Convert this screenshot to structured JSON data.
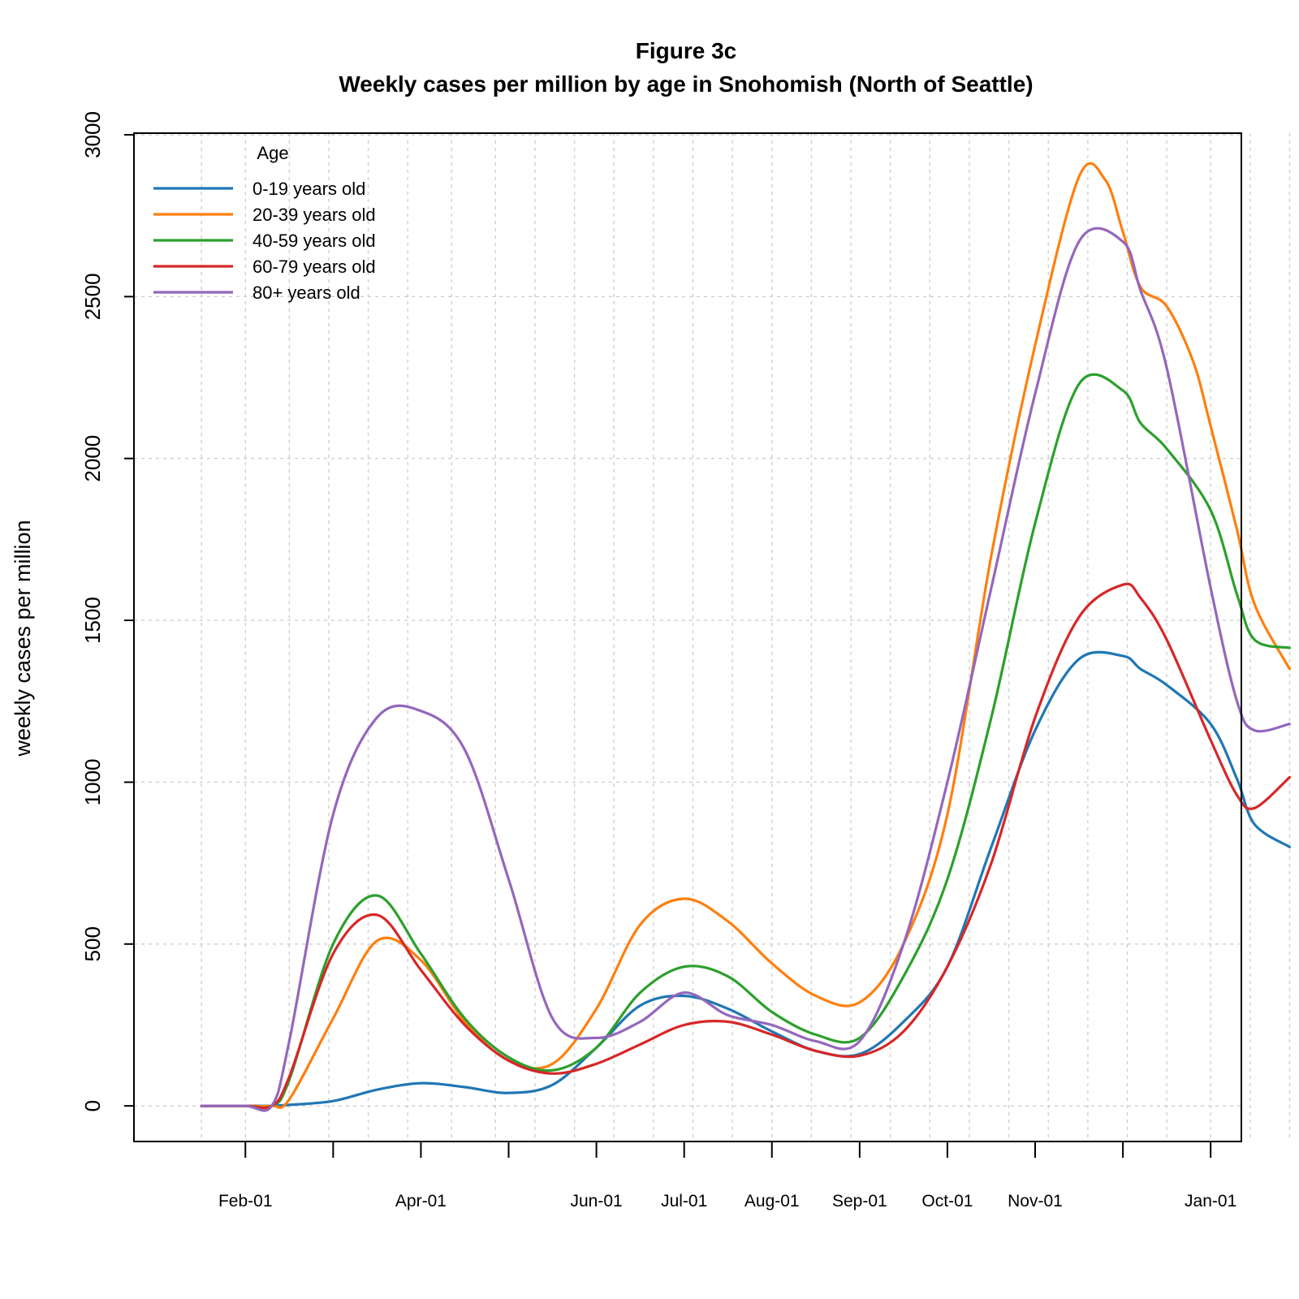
{
  "chart_data": {
    "type": "line",
    "title": "Figure 3c",
    "subtitle": "Weekly cases per million by age in Snohomish (North of Seattle)",
    "xlabel": "",
    "ylabel": "weekly cases per million",
    "ylim": [
      -110,
      3005
    ],
    "xlim": [
      -0.27,
      12.35
    ],
    "y_ticks": [
      "0",
      "500",
      "1000",
      "1500",
      "2000",
      "2500",
      "3000"
    ],
    "y_tick_values": [
      0,
      500,
      1000,
      1500,
      2000,
      2500,
      3000
    ],
    "x_ticks": [
      "Feb-01",
      "Apr-01",
      "Jun-01",
      "Jul-01",
      "Aug-01",
      "Sep-01",
      "Oct-01",
      "Nov-01",
      "Jan-01"
    ],
    "x_tick_positions": [
      1,
      3,
      5,
      6,
      7,
      8,
      9,
      10,
      12
    ],
    "x_major_positions": [
      1,
      2,
      3,
      4,
      5,
      6,
      7,
      8,
      9,
      10,
      11,
      12
    ],
    "x_minor_grid_positions": [
      0.5,
      1.0,
      1.5,
      1.95,
      2.4,
      2.85,
      3.35,
      3.85,
      4.3,
      4.75,
      5.2,
      5.65,
      6.1,
      6.55,
      7.0,
      7.45,
      7.9,
      8.35,
      8.8,
      9.25,
      9.7,
      10.15,
      10.6,
      11.05,
      11.5,
      12.0,
      12.45,
      12.9
    ],
    "grid": true,
    "legend": {
      "title": "Age",
      "position": "top-left",
      "entries": [
        "0-19 years old",
        "20-39 years old",
        "40-59 years old",
        "60-79 years old",
        "80+ years old"
      ]
    },
    "series": [
      {
        "name": "0-19 years old",
        "color": "#1f77b4",
        "x": [
          0.5,
          1.0,
          1.3,
          1.5,
          2.0,
          2.5,
          3.0,
          3.5,
          4.0,
          4.5,
          5.0,
          5.5,
          6.0,
          6.5,
          7.0,
          7.5,
          8.0,
          8.5,
          9.0,
          9.5,
          10.0,
          10.5,
          11.0,
          11.2,
          11.5,
          12.0,
          12.3,
          12.5,
          12.9
        ],
        "y": [
          0,
          0,
          0,
          3,
          15,
          50,
          70,
          58,
          40,
          65,
          180,
          310,
          340,
          300,
          230,
          170,
          160,
          260,
          430,
          800,
          1160,
          1380,
          1390,
          1350,
          1300,
          1180,
          1010,
          870,
          800
        ]
      },
      {
        "name": "20-39 years old",
        "color": "#ff7f0e",
        "x": [
          0.5,
          1.0,
          1.3,
          1.5,
          2.0,
          2.5,
          3.0,
          3.5,
          4.0,
          4.5,
          5.0,
          5.5,
          6.0,
          6.5,
          7.0,
          7.5,
          8.0,
          8.5,
          9.0,
          9.5,
          10.0,
          10.5,
          10.8,
          11.0,
          11.2,
          11.5,
          11.8,
          12.0,
          12.3,
          12.5,
          12.9
        ],
        "y": [
          0,
          0,
          0,
          20,
          270,
          510,
          450,
          260,
          140,
          130,
          300,
          560,
          640,
          570,
          440,
          340,
          320,
          500,
          900,
          1700,
          2350,
          2870,
          2860,
          2700,
          2530,
          2470,
          2300,
          2100,
          1780,
          1550,
          1350
        ]
      },
      {
        "name": "40-59 years old",
        "color": "#2ca02c",
        "x": [
          0.5,
          1.0,
          1.3,
          1.5,
          2.0,
          2.5,
          3.0,
          3.5,
          4.0,
          4.5,
          5.0,
          5.5,
          6.0,
          6.5,
          7.0,
          7.5,
          8.0,
          8.5,
          9.0,
          9.5,
          10.0,
          10.5,
          11.0,
          11.2,
          11.5,
          12.0,
          12.3,
          12.5,
          12.9
        ],
        "y": [
          0,
          0,
          0,
          80,
          500,
          650,
          470,
          270,
          150,
          110,
          180,
          350,
          430,
          400,
          290,
          220,
          210,
          400,
          700,
          1200,
          1800,
          2230,
          2210,
          2110,
          2030,
          1840,
          1580,
          1440,
          1415
        ]
      },
      {
        "name": "60-79 years old",
        "color": "#d62728",
        "x": [
          0.5,
          1.0,
          1.3,
          1.5,
          2.0,
          2.5,
          3.0,
          3.5,
          4.0,
          4.5,
          5.0,
          5.5,
          6.0,
          6.5,
          7.0,
          7.5,
          8.0,
          8.5,
          9.0,
          9.5,
          10.0,
          10.5,
          11.0,
          11.2,
          11.5,
          12.0,
          12.3,
          12.5,
          12.9
        ],
        "y": [
          0,
          0,
          0,
          90,
          470,
          590,
          420,
          250,
          140,
          100,
          130,
          190,
          250,
          260,
          220,
          170,
          155,
          230,
          430,
          750,
          1200,
          1510,
          1610,
          1570,
          1440,
          1130,
          960,
          920,
          1015
        ]
      },
      {
        "name": "80+ years old",
        "color": "#9467bd",
        "x": [
          0.5,
          1.0,
          1.3,
          1.5,
          2.0,
          2.5,
          3.0,
          3.5,
          4.0,
          4.5,
          5.0,
          5.5,
          6.0,
          6.5,
          7.0,
          7.5,
          8.0,
          8.5,
          9.0,
          9.5,
          10.0,
          10.5,
          11.0,
          11.2,
          11.5,
          12.0,
          12.3,
          12.5,
          12.9
        ],
        "y": [
          0,
          0,
          0,
          200,
          900,
          1200,
          1220,
          1100,
          700,
          270,
          210,
          260,
          350,
          280,
          250,
          200,
          200,
          500,
          1000,
          1600,
          2200,
          2670,
          2670,
          2520,
          2280,
          1600,
          1250,
          1160,
          1180
        ]
      }
    ]
  }
}
